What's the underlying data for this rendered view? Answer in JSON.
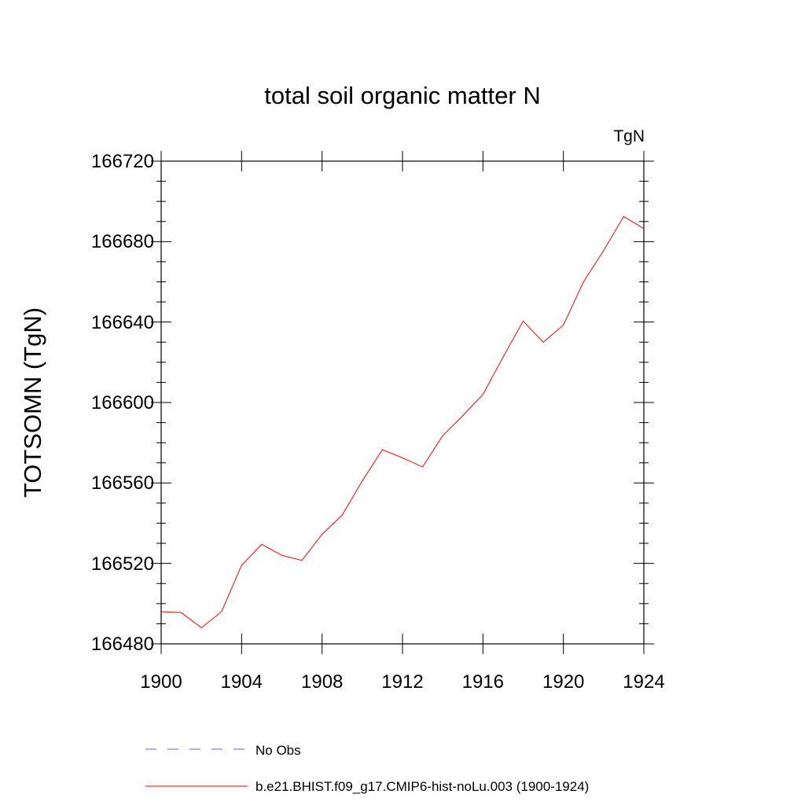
{
  "chart_data": {
    "type": "line",
    "title": "total soil organic matter N",
    "units_label": "TgN",
    "ylabel": "TOTSOMN  (TgN)",
    "xlabel": "",
    "xlim": [
      1900,
      1924
    ],
    "ylim": [
      166480,
      166720
    ],
    "x_ticks": [
      "1900",
      "1904",
      "1908",
      "1912",
      "1916",
      "1920",
      "1924"
    ],
    "y_ticks": [
      "166480",
      "166520",
      "166560",
      "166600",
      "166640",
      "166680",
      "166720"
    ],
    "grid": false,
    "legend_position": "bottom",
    "series": [
      {
        "name": "No Obs",
        "color": "#6a5acd",
        "dashed": true,
        "x": [],
        "values": []
      },
      {
        "name": "b.e21.BHIST.f09_g17.CMIP6-hist-noLu.003 (1900-1924)",
        "color": "#ff0000",
        "dashed": false,
        "x": [
          1900,
          1901,
          1902,
          1903,
          1904,
          1905,
          1906,
          1907,
          1908,
          1909,
          1910,
          1911,
          1912,
          1913,
          1914,
          1915,
          1916,
          1917,
          1918,
          1919,
          1920,
          1921,
          1922,
          1923,
          1924
        ],
        "values": [
          166496,
          166495.5,
          166488,
          166496,
          166519,
          166529.5,
          166524,
          166521.5,
          166534.5,
          166544,
          166561,
          166576.5,
          166572.5,
          166568,
          166583.5,
          166593.5,
          166604,
          166622.5,
          166640.5,
          166630,
          166638.5,
          166660,
          166675.5,
          166692.5,
          166686.5
        ]
      }
    ]
  }
}
